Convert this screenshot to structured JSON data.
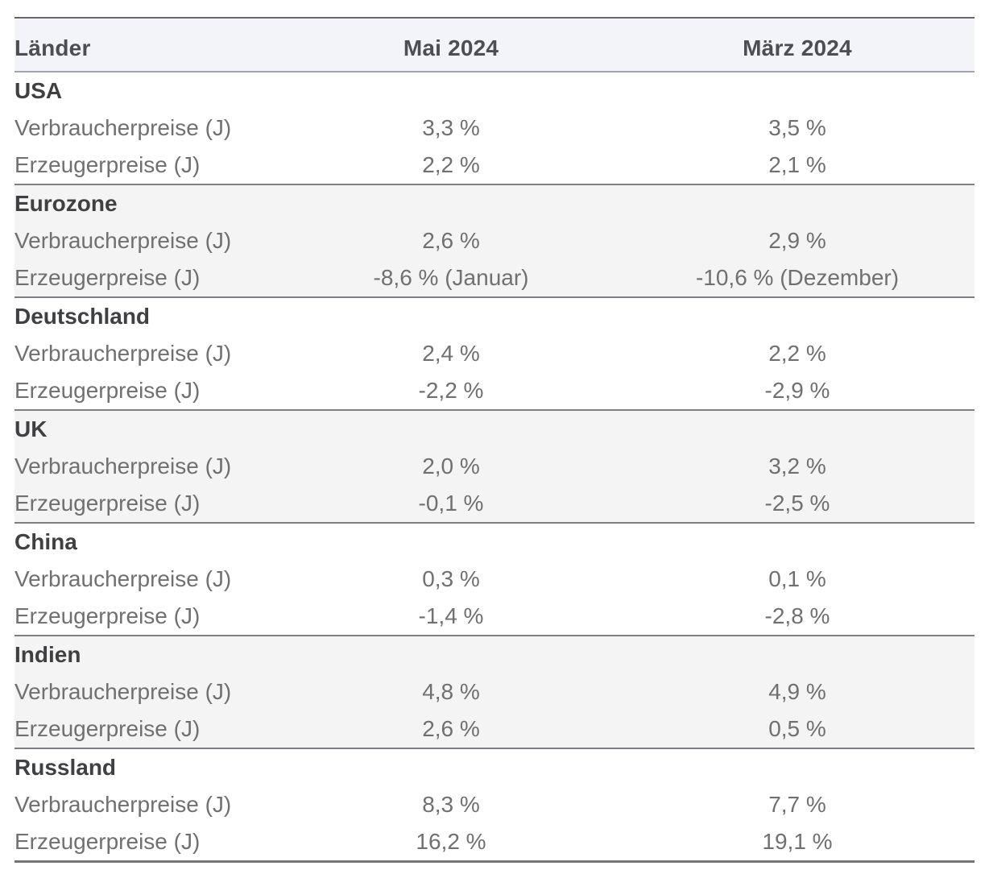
{
  "chart_data": {
    "type": "table",
    "columns": [
      "Länder",
      "Mai 2024",
      "März 2024"
    ],
    "sections": [
      {
        "country": "USA",
        "rows": [
          {
            "label": "Verbraucherpreise (J)",
            "values": [
              "3,3 %",
              "3,5 %"
            ]
          },
          {
            "label": "Erzeugerpreise (J)",
            "values": [
              "2,2 %",
              "2,1 %"
            ]
          }
        ]
      },
      {
        "country": "Eurozone",
        "rows": [
          {
            "label": "Verbraucherpreise (J)",
            "values": [
              "2,6 %",
              "2,9 %"
            ]
          },
          {
            "label": "Erzeugerpreise (J)",
            "values": [
              "-8,6 % (Januar)",
              "-10,6 % (Dezember)"
            ]
          }
        ]
      },
      {
        "country": "Deutschland",
        "rows": [
          {
            "label": "Verbraucherpreise (J)",
            "values": [
              "2,4 %",
              "2,2 %"
            ]
          },
          {
            "label": "Erzeugerpreise (J)",
            "values": [
              "-2,2 %",
              "-2,9 %"
            ]
          }
        ]
      },
      {
        "country": "UK",
        "rows": [
          {
            "label": "Verbraucherpreise (J)",
            "values": [
              "2,0 %",
              "3,2 %"
            ]
          },
          {
            "label": "Erzeugerpreise (J)",
            "values": [
              "-0,1 %",
              "-2,5 %"
            ]
          }
        ]
      },
      {
        "country": "China",
        "rows": [
          {
            "label": "Verbraucherpreise (J)",
            "values": [
              "0,3 %",
              "0,1 %"
            ]
          },
          {
            "label": "Erzeugerpreise (J)",
            "values": [
              "-1,4 %",
              "-2,8 %"
            ]
          }
        ]
      },
      {
        "country": "Indien",
        "rows": [
          {
            "label": "Verbraucherpreise (J)",
            "values": [
              "4,8 %",
              "4,9 %"
            ]
          },
          {
            "label": "Erzeugerpreise (J)",
            "values": [
              "2,6 %",
              "0,5 %"
            ]
          }
        ]
      },
      {
        "country": "Russland",
        "rows": [
          {
            "label": "Verbraucherpreise (J)",
            "values": [
              "8,3 %",
              "7,7 %"
            ]
          },
          {
            "label": "Erzeugerpreise (J)",
            "values": [
              "16,2 %",
              "19,1 %"
            ]
          }
        ]
      }
    ],
    "shaded_sections": [
      "Eurozone",
      "UK",
      "Indien"
    ],
    "layout": {
      "column_alignment": [
        "left",
        "center",
        "center"
      ],
      "grid": "horizontal-section-dividers"
    }
  },
  "colors": {
    "header_bg": "#f3f4fa",
    "shaded_section_bg": "#f4f4f4",
    "top_border": "#65666a",
    "header_border": "#a2a4ac",
    "section_border": "#7e7f83",
    "header_text": "#4c4e54",
    "country_text": "#3f4043",
    "body_text": "#707070"
  }
}
